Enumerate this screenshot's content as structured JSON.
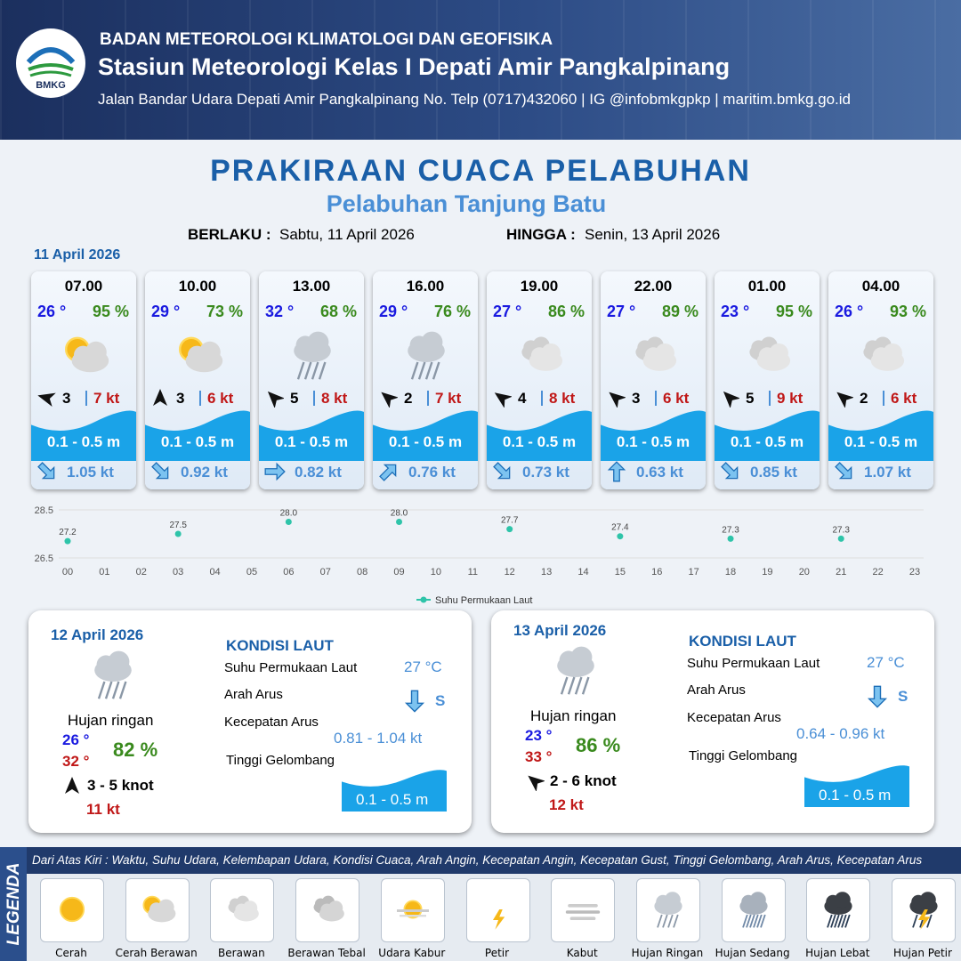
{
  "header": {
    "logo_text": "BMKG",
    "agency": "BADAN METEOROLOGI KLIMATOLOGI DAN GEOFISIKA",
    "station": "Stasiun Meteorologi Kelas I Depati Amir Pangkalpinang",
    "address": "Jalan Bandar Udara Depati Amir Pangkalpinang No. Telp (0717)432060 | IG @infobmkgpkp | maritim.bmkg.go.id"
  },
  "title": "PRAKIRAAN CUACA PELABUHAN",
  "subtitle": "Pelabuhan Tanjung Batu",
  "validity": {
    "from_label": "BERLAKU :",
    "from": "Sabtu, 11 April 2026",
    "to_label": "HINGGA :",
    "to": "Senin, 13 April 2026"
  },
  "day1": {
    "date": "11 April 2026",
    "cards": [
      {
        "time": "07.00",
        "temp": "26 °",
        "humidity": "95 %",
        "wind": "3",
        "gust": "7 kt",
        "wave": "0.1 - 0.5 m",
        "current": "1.05 kt"
      },
      {
        "time": "10.00",
        "temp": "29 °",
        "humidity": "73 %",
        "wind": "3",
        "gust": "6 kt",
        "wave": "0.1 - 0.5 m",
        "current": "0.92 kt"
      },
      {
        "time": "13.00",
        "temp": "32 °",
        "humidity": "68 %",
        "wind": "5",
        "gust": "8 kt",
        "wave": "0.1 - 0.5 m",
        "current": "0.82 kt"
      },
      {
        "time": "16.00",
        "temp": "29 °",
        "humidity": "76 %",
        "wind": "2",
        "gust": "7 kt",
        "wave": "0.1 - 0.5 m",
        "current": "0.76 kt"
      },
      {
        "time": "19.00",
        "temp": "27 °",
        "humidity": "86 %",
        "wind": "4",
        "gust": "8 kt",
        "wave": "0.1 - 0.5 m",
        "current": "0.73 kt"
      },
      {
        "time": "22.00",
        "temp": "27 °",
        "humidity": "89 %",
        "wind": "3",
        "gust": "6 kt",
        "wave": "0.1 - 0.5 m",
        "current": "0.63 kt"
      },
      {
        "time": "01.00",
        "temp": "23 °",
        "humidity": "95 %",
        "wind": "5",
        "gust": "9 kt",
        "wave": "0.1 - 0.5 m",
        "current": "0.85 kt"
      },
      {
        "time": "04.00",
        "temp": "26 °",
        "humidity": "93 %",
        "wind": "2",
        "gust": "6 kt",
        "wave": "0.1 - 0.5 m",
        "current": "1.07 kt"
      }
    ]
  },
  "chart_data": {
    "type": "scatter",
    "series": [
      {
        "name": "Suhu Permukaan Laut",
        "color": "#2ec4a9",
        "x": [
          0,
          3,
          6,
          9,
          12,
          15,
          18,
          21
        ],
        "values": [
          27.2,
          27.5,
          28.0,
          28.0,
          27.7,
          27.4,
          27.3,
          27.3
        ],
        "value_labels": [
          "27.2",
          "27.5",
          "28.0",
          "28.0",
          "27.7",
          "27.4",
          "27.3",
          "27.3"
        ]
      }
    ],
    "xlim": [
      0,
      23
    ],
    "xticks": [
      {
        "value": 0,
        "label": "00"
      },
      {
        "value": 1,
        "label": "01"
      },
      {
        "value": 2,
        "label": "02"
      },
      {
        "value": 3,
        "label": "03"
      },
      {
        "value": 4,
        "label": "04"
      },
      {
        "value": 5,
        "label": "05"
      },
      {
        "value": 6,
        "label": "06"
      },
      {
        "value": 7,
        "label": "07"
      },
      {
        "value": 8,
        "label": "08"
      },
      {
        "value": 9,
        "label": "09"
      },
      10,
      11,
      12,
      13,
      14,
      15,
      16,
      17,
      18,
      19,
      20,
      21,
      22,
      23
    ],
    "ylim": [
      26.5,
      28.5
    ],
    "yticks": [
      26.5,
      28.5
    ],
    "grid": true,
    "legend": "bottom"
  },
  "forecast_days": [
    {
      "date": "12 April 2026",
      "condition": "Hujan ringan",
      "temp_min": "26 °",
      "temp_max": "32 °",
      "humidity": "82 %",
      "wind": "3  - 5 knot",
      "gust": "11 kt",
      "sea_title": "KONDISI LAUT",
      "sst_label": "Suhu Permukaan Laut",
      "sst": "27 °C",
      "current_dir_label": "Arah Arus",
      "current_dir": "S",
      "current_speed_label": "Kecepatan Arus",
      "current_speed": "0.81  - 1.04 kt",
      "wave_label": "Tinggi Gelombang",
      "wave": "0.1 - 0.5 m"
    },
    {
      "date": "13 April 2026",
      "condition": "Hujan ringan",
      "temp_min": "23 °",
      "temp_max": "33 °",
      "humidity": "86 %",
      "wind": "2  - 6 knot",
      "gust": "12 kt",
      "sea_title": "KONDISI LAUT",
      "sst_label": "Suhu Permukaan Laut",
      "sst": "27 °C",
      "current_dir_label": "Arah Arus",
      "current_dir": "S",
      "current_speed_label": "Kecepatan Arus",
      "current_speed": "0.64  - 0.96 kt",
      "wave_label": "Tinggi Gelombang",
      "wave": "0.1 - 0.5 m"
    }
  ],
  "legend": {
    "title": "LEGENDA",
    "description": "Dari Atas Kiri : Waktu, Suhu Udara, Kelembapan Udara, Kondisi Cuaca, Arah Angin, Kecepatan Angin, Kecepatan Gust, Tinggi Gelombang, Arah Arus, Kecepatan Arus",
    "items": [
      "Cerah",
      "Cerah Berawan",
      "Berawan",
      "Berawan Tebal",
      "Udara Kabur",
      "Petir",
      "Kabut",
      "Hujan Ringan",
      "Hujan Sedang",
      "Hujan Lebat",
      "Hujan Petir"
    ]
  }
}
